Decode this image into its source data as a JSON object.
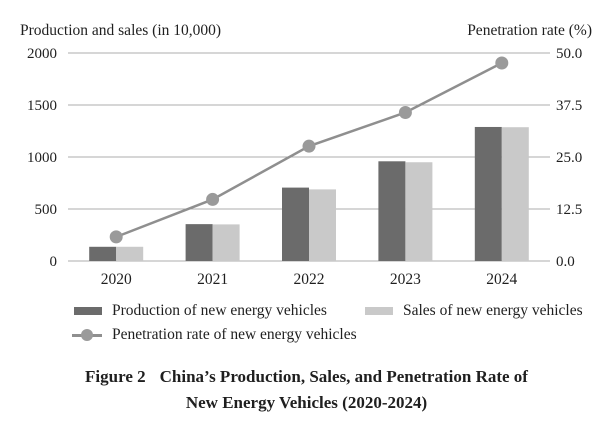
{
  "figure": {
    "caption_label": "Figure 2",
    "caption_line1": "China’s Production, Sales, and Penetration Rate of",
    "caption_line2": "New Energy Vehicles (2020-2024)"
  },
  "chart_data": {
    "type": "combo bar+line",
    "title": "",
    "categories": [
      "2020",
      "2021",
      "2022",
      "2023",
      "2024"
    ],
    "series": [
      {
        "name": "Production of new energy vehicles",
        "type": "bar",
        "axis": "left",
        "color": "#6b6b6b",
        "values": [
          136.6,
          354.5,
          705.8,
          958.7,
          1288.8
        ]
      },
      {
        "name": "Sales of new energy vehicles",
        "type": "bar",
        "axis": "left",
        "color": "#c9c9c9",
        "values": [
          136.7,
          352.1,
          688.7,
          949.5,
          1286.6
        ]
      },
      {
        "name": "Penetration rate of new energy vehicles",
        "type": "line",
        "axis": "right",
        "color": "#8f8f8f",
        "marker": "circle",
        "marker_color": "#9a9a9a",
        "values": [
          5.8,
          14.8,
          27.6,
          35.7,
          47.6
        ]
      }
    ],
    "left_axis": {
      "title": "Production and sales (in 10,000)",
      "min": 0,
      "max": 2000,
      "ticks": [
        0,
        500,
        1000,
        1500,
        2000
      ]
    },
    "right_axis": {
      "title": "Penetration rate (%)",
      "min": 0,
      "max": 50,
      "tick_labels": [
        "0.0",
        "12.5",
        "25.0",
        "37.5",
        "50.0"
      ]
    },
    "grid": "horizontal",
    "legend_position": "bottom",
    "colors": {
      "grid": "#adadad",
      "text": "#1f1f1f",
      "background": "#ffffff"
    }
  }
}
